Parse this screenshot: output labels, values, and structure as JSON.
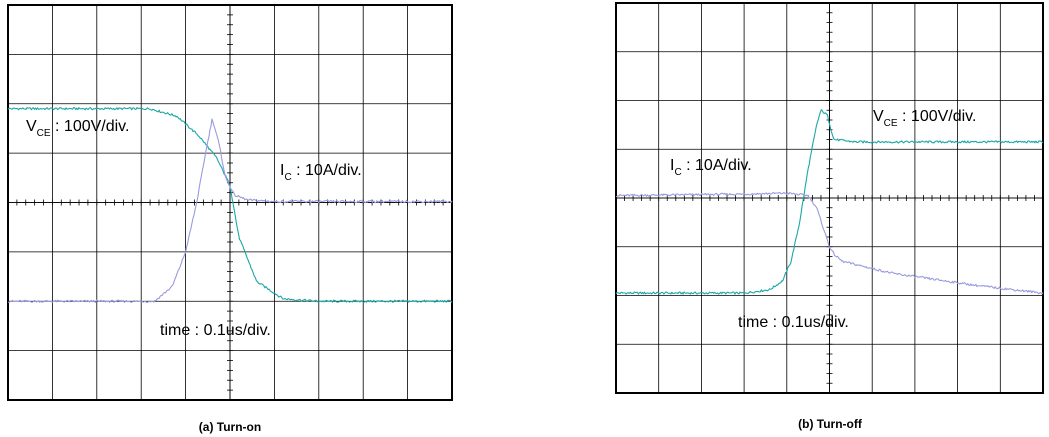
{
  "colors": {
    "vce": "#1aa7a5",
    "ic": "#9a9ae0",
    "frame": "#000000",
    "background": "#ffffff"
  },
  "chart_data": [
    {
      "type": "line",
      "caption": "(a) Turn-on",
      "grid": {
        "divisions_x": 10,
        "divisions_y": 8,
        "minor_ticks_per_division": 5
      },
      "annotations": {
        "vce": {
          "symbol": "V",
          "subscript": "CE",
          "text": " : 100V/div."
        },
        "ic": {
          "symbol": "I",
          "subscript": "C",
          "text": " : 10A/div."
        },
        "time": {
          "text": "time : 0.1us/div."
        }
      },
      "series": [
        {
          "key": "vce",
          "xlabel_units": "div",
          "ylabel_units": "div",
          "x": [
            0,
            3.2,
            3.8,
            4.3,
            4.7,
            5.0,
            5.2,
            5.6,
            6.2,
            7.0,
            10
          ],
          "y": [
            1.9,
            1.9,
            1.75,
            1.35,
            0.9,
            0.35,
            -0.7,
            -1.6,
            -1.95,
            -2.0,
            -2.0
          ]
        },
        {
          "key": "ic",
          "xlabel_units": "div",
          "ylabel_units": "div",
          "x": [
            0,
            3.3,
            3.7,
            4.0,
            4.25,
            4.45,
            4.6,
            4.75,
            4.9,
            5.1,
            5.4,
            6.0,
            10
          ],
          "y": [
            -2.0,
            -2.0,
            -1.7,
            -1.0,
            0.0,
            1.0,
            1.7,
            1.2,
            0.5,
            0.15,
            0.05,
            0.02,
            0.02
          ]
        }
      ]
    },
    {
      "type": "line",
      "caption": "(b) Turn-off",
      "grid": {
        "divisions_x": 10,
        "divisions_y": 8,
        "minor_ticks_per_division": 5
      },
      "annotations": {
        "vce": {
          "symbol": "V",
          "subscript": "CE",
          "text": " : 100V/div."
        },
        "ic": {
          "symbol": "I",
          "subscript": "C",
          "text": " : 10A/div."
        },
        "time": {
          "text": "time : 0.1us/div."
        }
      },
      "series": [
        {
          "key": "vce",
          "xlabel_units": "div",
          "ylabel_units": "div",
          "x": [
            0,
            3.0,
            3.6,
            3.9,
            4.1,
            4.3,
            4.5,
            4.7,
            4.8,
            4.95,
            5.1,
            5.6,
            7.0,
            10
          ],
          "y": [
            -1.95,
            -1.95,
            -1.88,
            -1.7,
            -1.3,
            -0.5,
            0.6,
            1.5,
            1.8,
            1.7,
            1.2,
            1.15,
            1.15,
            1.15
          ]
        },
        {
          "key": "ic",
          "xlabel_units": "div",
          "ylabel_units": "div",
          "x": [
            0,
            3.0,
            4.0,
            4.5,
            4.7,
            4.85,
            5.0,
            5.1,
            5.3,
            6.5,
            8.5,
            10
          ],
          "y": [
            0.05,
            0.08,
            0.1,
            0.05,
            -0.2,
            -0.6,
            -1.0,
            -1.15,
            -1.3,
            -1.55,
            -1.8,
            -1.95
          ]
        }
      ]
    }
  ]
}
